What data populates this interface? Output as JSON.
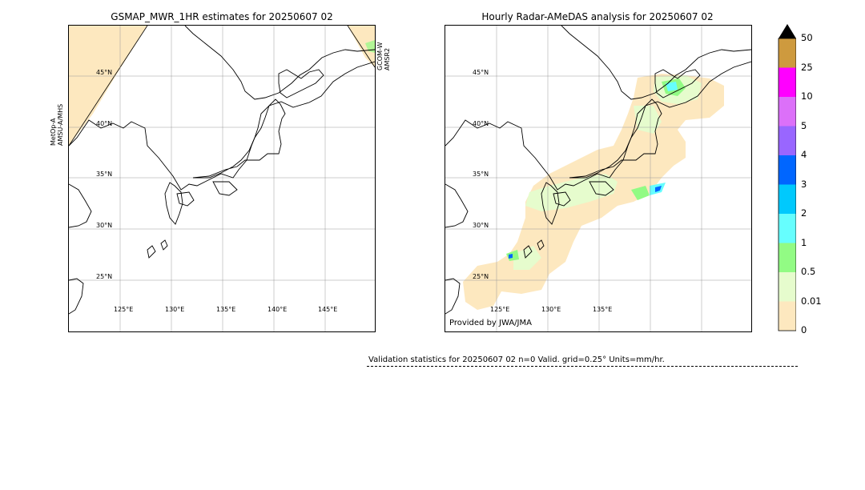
{
  "left_panel": {
    "title": "GSMAP_MWR_1HR estimates for 20250607 02",
    "lat_labels": [
      "45°N",
      "40°N",
      "35°N",
      "30°N",
      "25°N"
    ],
    "lon_labels": [
      "125°E",
      "130°E",
      "135°E",
      "140°E",
      "145°E"
    ],
    "sat_left": "MetOp-A\nAMSU-A/MHS",
    "sat_right": "GCOM-W\nAMSR2"
  },
  "right_panel": {
    "title": "Hourly Radar-AMeDAS analysis for 20250607 02",
    "lat_labels": [
      "45°N",
      "40°N",
      "35°N",
      "30°N",
      "25°N"
    ],
    "lon_labels": [
      "125°E",
      "130°E",
      "135°E"
    ],
    "credit": "Provided by JWA/JMA"
  },
  "colorbar": {
    "ticks": [
      "0",
      "0.01",
      "0.5",
      "1",
      "2",
      "3",
      "4",
      "5",
      "10",
      "25",
      "50"
    ],
    "colors": [
      "#fde8bf",
      "#e6fccd",
      "#92fb84",
      "#66fefe",
      "#00c9fd",
      "#0066ff",
      "#9966ff",
      "#dc70f9",
      "#ff00ff",
      "#ce9a3e"
    ],
    "extend_color": "#000000"
  },
  "validation": {
    "text": "Validation statistics for 20250607 02  n=0 Valid. grid=0.25° Units=mm/hr."
  }
}
